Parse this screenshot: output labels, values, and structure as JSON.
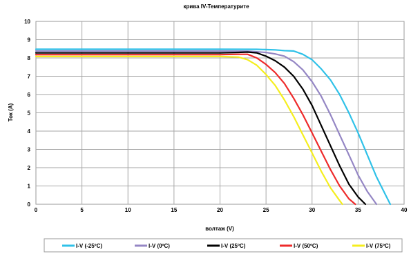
{
  "chart_data": {
    "type": "line",
    "title": "крива IV-Температурите",
    "xlabel": "волтаж  (V)",
    "ylabel": "Ток (A)",
    "xlim": [
      0,
      40
    ],
    "ylim": [
      0,
      10
    ],
    "xticks": [
      0,
      5,
      10,
      15,
      20,
      25,
      30,
      35,
      40
    ],
    "yticks": [
      0,
      1,
      2,
      3,
      4,
      5,
      6,
      7,
      8,
      9,
      10
    ],
    "grid": true,
    "legend_position": "bottom",
    "series": [
      {
        "name": "I-V (-25ºC)",
        "color": "#2fc1e8",
        "points": [
          [
            0,
            8.48
          ],
          [
            20,
            8.48
          ],
          [
            24,
            8.47
          ],
          [
            26,
            8.44
          ],
          [
            27,
            8.4
          ],
          [
            28,
            8.38
          ],
          [
            29,
            8.2
          ],
          [
            30,
            7.9
          ],
          [
            31,
            7.4
          ],
          [
            32,
            6.8
          ],
          [
            33,
            6.0
          ],
          [
            34,
            5.0
          ],
          [
            35,
            3.9
          ],
          [
            36,
            2.7
          ],
          [
            37,
            1.5
          ],
          [
            38,
            0.5
          ],
          [
            38.5,
            0
          ]
        ]
      },
      {
        "name": "I-V (0ºC)",
        "color": "#9486c4",
        "points": [
          [
            0,
            8.38
          ],
          [
            20,
            8.38
          ],
          [
            23,
            8.37
          ],
          [
            25,
            8.3
          ],
          [
            26,
            8.22
          ],
          [
            27,
            8.1
          ],
          [
            28,
            7.8
          ],
          [
            29,
            7.35
          ],
          [
            30,
            6.7
          ],
          [
            31,
            5.9
          ],
          [
            32,
            4.9
          ],
          [
            33,
            3.8
          ],
          [
            34,
            2.7
          ],
          [
            35,
            1.6
          ],
          [
            36,
            0.7
          ],
          [
            37,
            0
          ]
        ]
      },
      {
        "name": "I-V (25ºC)",
        "color": "#000000",
        "points": [
          [
            0,
            8.28
          ],
          [
            20,
            8.28
          ],
          [
            22,
            8.3
          ],
          [
            23,
            8.32
          ],
          [
            24,
            8.28
          ],
          [
            25,
            8.1
          ],
          [
            26,
            7.85
          ],
          [
            27,
            7.5
          ],
          [
            28,
            7.0
          ],
          [
            29,
            6.3
          ],
          [
            30,
            5.4
          ],
          [
            31,
            4.3
          ],
          [
            32,
            3.2
          ],
          [
            33,
            2.1
          ],
          [
            34,
            1.1
          ],
          [
            35,
            0.4
          ],
          [
            35.8,
            0
          ]
        ]
      },
      {
        "name": "I-V (50ºC)",
        "color": "#ee2a2a",
        "points": [
          [
            0,
            8.18
          ],
          [
            20,
            8.18
          ],
          [
            22,
            8.2
          ],
          [
            23,
            8.2
          ],
          [
            24,
            8.0
          ],
          [
            25,
            7.65
          ],
          [
            26,
            7.2
          ],
          [
            27,
            6.6
          ],
          [
            28,
            5.8
          ],
          [
            29,
            4.9
          ],
          [
            30,
            3.9
          ],
          [
            31,
            2.9
          ],
          [
            32,
            1.9
          ],
          [
            33,
            1.0
          ],
          [
            34,
            0.3
          ],
          [
            34.7,
            0
          ]
        ]
      },
      {
        "name": "I-V (75ºC)",
        "color": "#f5ee1e",
        "points": [
          [
            0,
            8.08
          ],
          [
            20,
            8.08
          ],
          [
            22,
            8.05
          ],
          [
            23,
            7.9
          ],
          [
            24,
            7.6
          ],
          [
            25,
            7.1
          ],
          [
            26,
            6.5
          ],
          [
            27,
            5.7
          ],
          [
            28,
            4.8
          ],
          [
            29,
            3.8
          ],
          [
            30,
            2.8
          ],
          [
            31,
            1.8
          ],
          [
            32,
            0.9
          ],
          [
            33,
            0.2
          ],
          [
            33.3,
            0
          ]
        ]
      }
    ]
  }
}
